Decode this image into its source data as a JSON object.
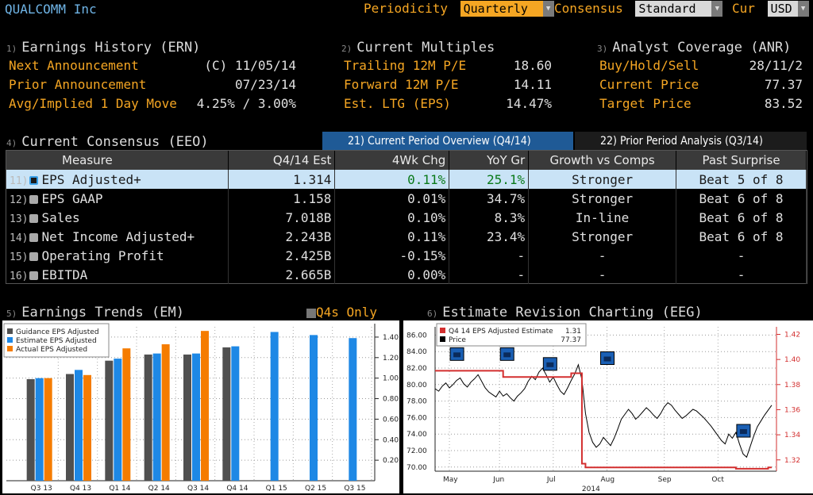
{
  "header": {
    "app_title": "QUALCOMM Inc",
    "periodicity_label": "Periodicity",
    "periodicity_value": "Quarterly",
    "consensus_label": "Consensus",
    "consensus_value": "Standard",
    "cur_label": "Cur",
    "cur_value": "USD"
  },
  "earnings_history": {
    "num": "1)",
    "title": "Earnings History (ERN)",
    "rows": [
      {
        "label": "Next Announcement",
        "value": "(C)  11/05/14"
      },
      {
        "label": "Prior Announcement",
        "value": "07/23/14"
      },
      {
        "label": "Avg/Implied 1 Day Move",
        "value": "4.25% / 3.00%"
      }
    ]
  },
  "current_multiples": {
    "num": "2)",
    "title": "Current Multiples",
    "rows": [
      {
        "label": "Trailing 12M P/E",
        "value": "18.60"
      },
      {
        "label": "Forward 12M P/E",
        "value": "14.11"
      },
      {
        "label": "Est. LTG (EPS)",
        "value": "14.47%"
      }
    ]
  },
  "analyst_coverage": {
    "num": "3)",
    "title": "Analyst Coverage (ANR)",
    "rows": [
      {
        "label": "Buy/Hold/Sell",
        "value": "28/11/2"
      },
      {
        "label": "Current Price",
        "value": "77.37"
      },
      {
        "label": "Target Price",
        "value": "83.52"
      }
    ]
  },
  "consensus": {
    "num": "4)",
    "title": "Current Consensus (EEO)",
    "tab_current": "21) Current Period Overview (Q4/14)",
    "tab_prior": "22) Prior Period Analysis (Q3/14)",
    "columns": [
      "Measure",
      "Q4/14 Est",
      "4Wk Chg",
      "YoY Gr",
      "Growth vs Comps",
      "Past Surprise"
    ],
    "rows": [
      {
        "num": "11)",
        "measure": "EPS Adjusted+",
        "est": "1.314",
        "chg": "0.11%",
        "chg_color": "g",
        "yoy": "25.1%",
        "comps": "Stronger",
        "surprise": "Beat 5 of 8"
      },
      {
        "num": "12)",
        "measure": "EPS GAAP",
        "est": "1.158",
        "chg": "0.01%",
        "chg_color": "g",
        "yoy": "34.7%",
        "comps": "Stronger",
        "surprise": "Beat 6 of 8"
      },
      {
        "num": "13)",
        "measure": "Sales",
        "est": "7.018B",
        "chg": "0.10%",
        "chg_color": "g",
        "yoy": "8.3%",
        "comps": "In-line",
        "surprise": "Beat 6 of 8"
      },
      {
        "num": "14)",
        "measure": "Net Income Adjusted+",
        "est": "2.243B",
        "chg": "0.11%",
        "chg_color": "g",
        "yoy": "23.4%",
        "comps": "Stronger",
        "surprise": "Beat 6 of 8"
      },
      {
        "num": "15)",
        "measure": "Operating Profit",
        "est": "2.425B",
        "chg": "-0.15%",
        "chg_color": "r",
        "yoy": "-",
        "comps": "-",
        "surprise": "-"
      },
      {
        "num": "16)",
        "measure": "EBITDA",
        "est": "2.665B",
        "chg": "0.00%",
        "chg_color": "w",
        "yoy": "-",
        "comps": "-",
        "surprise": "-"
      }
    ]
  },
  "earnings_trends": {
    "num": "5)",
    "title": "Earnings Trends (EM)",
    "q4_toggle": "Q4s Only"
  },
  "estimate_revision": {
    "num": "6)",
    "title": "Estimate Revision Charting (EEG)"
  },
  "colors": {
    "guidance": "#505050",
    "estimate": "#1e88e5",
    "actual": "#f57c00",
    "price": "#000000",
    "est_line": "#d32f2f"
  },
  "chart_data": [
    {
      "type": "bar",
      "categories": [
        "Q3 13",
        "Q4 13",
        "Q1 14",
        "Q2 14",
        "Q3 14",
        "Q4 14",
        "Q1 15",
        "Q2 15",
        "Q3 15"
      ],
      "series": [
        {
          "name": "Guidance EPS Adjusted",
          "values": [
            0.99,
            1.04,
            1.17,
            1.23,
            1.23,
            1.3,
            null,
            null,
            null
          ]
        },
        {
          "name": "Estimate EPS Adjusted",
          "values": [
            1.0,
            1.08,
            1.19,
            1.24,
            1.24,
            1.31,
            1.45,
            1.42,
            1.39
          ]
        },
        {
          "name": "Actual EPS Adjusted",
          "values": [
            1.0,
            1.03,
            1.29,
            1.33,
            1.46,
            null,
            null,
            null,
            null
          ]
        }
      ],
      "y_ticks": [
        "0.20",
        "0.40",
        "0.60",
        "0.80",
        "1.00",
        "1.20",
        "1.40"
      ],
      "ylim": [
        0,
        1.5
      ]
    },
    {
      "type": "line",
      "legend": [
        {
          "name": "Q4 14 EPS Adjusted Estimate",
          "value": "1.31"
        },
        {
          "name": "Price",
          "value": "77.37"
        }
      ],
      "x_ticks": [
        "May",
        "Jun",
        "Jul",
        "Aug",
        "Sep",
        "Oct"
      ],
      "x_year": "2014",
      "left_ticks": [
        "70.00",
        "72.00",
        "74.00",
        "76.00",
        "78.00",
        "80.00",
        "82.00",
        "84.00",
        "86.00"
      ],
      "right_ticks": [
        "1.32",
        "1.34",
        "1.36",
        "1.38",
        "1.40",
        "1.42"
      ],
      "price_ylim": [
        69.5,
        87
      ],
      "est_ylim": [
        1.311,
        1.426
      ],
      "price": [
        79.5,
        79.2,
        79.8,
        80.2,
        79.6,
        80.0,
        80.5,
        80.8,
        80.1,
        79.7,
        80.3,
        80.7,
        81.2,
        80.4,
        79.6,
        79.1,
        78.8,
        78.5,
        79.2,
        78.6,
        78.9,
        78.4,
        78.0,
        78.6,
        79.0,
        79.5,
        80.4,
        81.0,
        80.6,
        81.5,
        82.0,
        81.2,
        80.3,
        80.9,
        80.0,
        79.2,
        78.8,
        79.6,
        80.5,
        81.3,
        82.4,
        80.6,
        76.5,
        74.2,
        73.0,
        72.4,
        72.8,
        73.6,
        73.1,
        72.6,
        73.5,
        74.6,
        75.8,
        76.4,
        77.0,
        76.5,
        75.8,
        76.2,
        76.7,
        77.2,
        76.8,
        76.3,
        75.9,
        76.5,
        77.3,
        77.8,
        77.5,
        76.9,
        76.4,
        75.9,
        76.2,
        76.6,
        77.0,
        76.8,
        76.4,
        76.0,
        75.5,
        75.0,
        74.4,
        73.8,
        73.2,
        72.8,
        74.0,
        73.5,
        74.2,
        72.8,
        71.6,
        71.2,
        72.5,
        73.8,
        74.9,
        75.6,
        76.3,
        76.9,
        77.5
      ],
      "estimate": [
        1.391,
        1.391,
        1.391,
        1.391,
        1.391,
        1.391,
        1.391,
        1.391,
        1.391,
        1.391,
        1.391,
        1.391,
        1.391,
        1.391,
        1.391,
        1.391,
        1.391,
        1.391,
        1.391,
        1.386,
        1.386,
        1.386,
        1.386,
        1.386,
        1.386,
        1.386,
        1.386,
        1.386,
        1.386,
        1.386,
        1.386,
        1.386,
        1.386,
        1.386,
        1.386,
        1.386,
        1.386,
        1.386,
        1.389,
        1.389,
        1.389,
        1.317,
        1.314,
        1.314,
        1.314,
        1.314,
        1.314,
        1.314,
        1.314,
        1.314,
        1.314,
        1.314,
        1.314,
        1.314,
        1.314,
        1.314,
        1.314,
        1.314,
        1.314,
        1.314,
        1.314,
        1.314,
        1.314,
        1.314,
        1.314,
        1.314,
        1.314,
        1.314,
        1.314,
        1.314,
        1.314,
        1.314,
        1.314,
        1.314,
        1.314,
        1.314,
        1.314,
        1.314,
        1.314,
        1.314,
        1.314,
        1.314,
        1.314,
        1.314,
        1.313,
        1.313,
        1.313,
        1.313,
        1.313,
        1.313,
        1.313,
        1.313,
        1.313,
        1.314,
        1.314
      ]
    }
  ]
}
